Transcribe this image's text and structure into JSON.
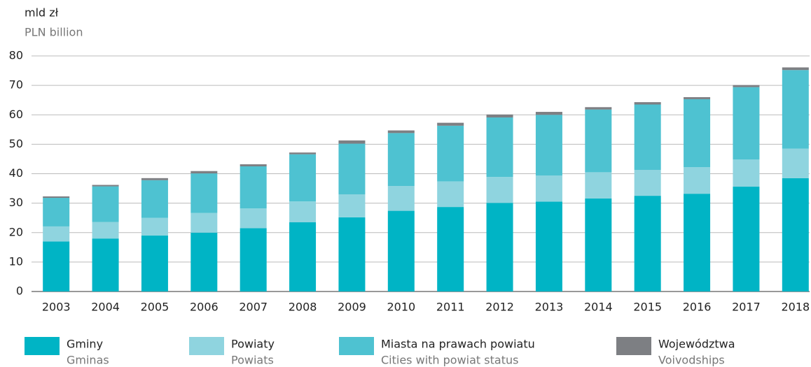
{
  "chart_data": {
    "type": "stacked_bar",
    "y_label": "mld zł",
    "y_label_en": "PLN billion",
    "categories": [
      "2003",
      "2004",
      "2005",
      "2006",
      "2007",
      "2008",
      "2009",
      "2010",
      "2011",
      "2012",
      "2013",
      "2014",
      "2015",
      "2016",
      "2017",
      "2018"
    ],
    "series": [
      {
        "name": "Gminy",
        "name_en": "Gminas",
        "color": "#00b4c5",
        "values": [
          17,
          18,
          19,
          20,
          21.5,
          23.5,
          25.2,
          27.4,
          28.7,
          30.1,
          30.5,
          31.6,
          32.5,
          33.2,
          35.6,
          38.5
        ]
      },
      {
        "name": "Powiaty",
        "name_en": "Powiats",
        "color": "#8fd4df",
        "values": [
          5.1,
          5.6,
          6,
          6.7,
          6.7,
          7.1,
          7.8,
          8.4,
          8.7,
          8.8,
          8.9,
          8.9,
          8.8,
          9,
          9.2,
          10
        ]
      },
      {
        "name": "Miasta na prawach powiatu",
        "name_en": "Cities with powiat status",
        "color": "#4ec2d1",
        "values": [
          9.7,
          12.1,
          12.8,
          13.4,
          14.3,
          16,
          17.2,
          18,
          18.9,
          20.2,
          20.6,
          21.3,
          22.2,
          23.1,
          24.6,
          26.7
        ]
      },
      {
        "name": "Województwa",
        "name_en": "Voivodships",
        "color": "#7d7f83",
        "values": [
          0.5,
          0.5,
          0.7,
          0.8,
          0.7,
          0.6,
          1.1,
          0.9,
          1,
          1,
          1,
          0.8,
          0.8,
          0.7,
          0.7,
          0.9
        ]
      }
    ],
    "ylim": [
      0,
      80
    ],
    "yticks": [
      0,
      10,
      20,
      30,
      40,
      50,
      60,
      70,
      80
    ],
    "grid": true
  }
}
